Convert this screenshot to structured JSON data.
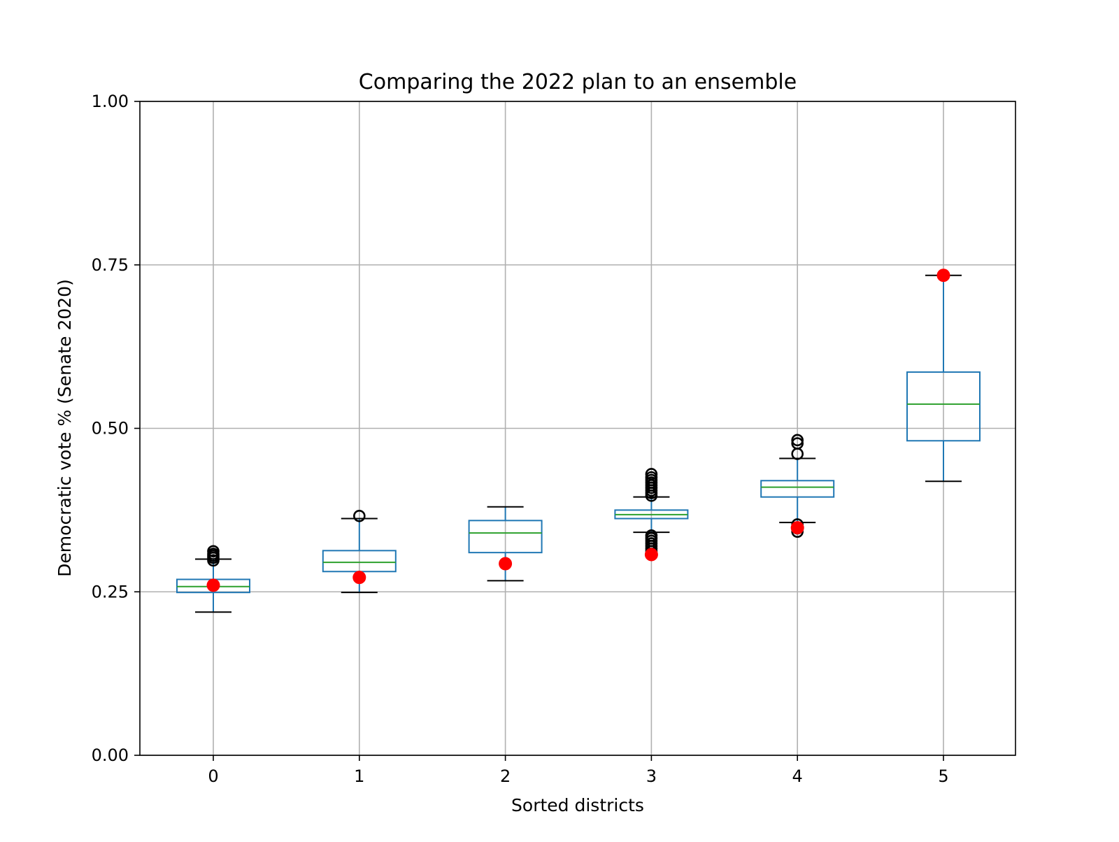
{
  "chart_data": {
    "type": "box",
    "title": "Comparing the 2022 plan to an ensemble",
    "xlabel": "Sorted districts",
    "ylabel": "Democratic vote % (Senate 2020)",
    "ylim": [
      0,
      1
    ],
    "yticks": [
      "0.00",
      "0.25",
      "0.50",
      "0.75",
      "1.00"
    ],
    "categories": [
      "0",
      "1",
      "2",
      "3",
      "4",
      "5"
    ],
    "grid": true,
    "colors": {
      "box": "#1f77b4",
      "median": "#2ca02c",
      "whisker": "#1f77b4",
      "cap": "#000000",
      "outlier": "#000000",
      "plan_marker": "#ff0000",
      "grid": "#b0b0b0"
    },
    "boxes": [
      {
        "category": "0",
        "whisker_low": 0.219,
        "q1": 0.249,
        "median": 0.258,
        "q3": 0.269,
        "whisker_high": 0.3,
        "outliers": [
          0.298,
          0.302,
          0.305,
          0.308,
          0.312
        ]
      },
      {
        "category": "1",
        "whisker_low": 0.249,
        "q1": 0.281,
        "median": 0.295,
        "q3": 0.313,
        "whisker_high": 0.362,
        "outliers": [
          0.366
        ]
      },
      {
        "category": "2",
        "whisker_low": 0.267,
        "q1": 0.31,
        "median": 0.34,
        "q3": 0.359,
        "whisker_high": 0.38,
        "outliers": []
      },
      {
        "category": "3",
        "whisker_low": 0.341,
        "q1": 0.362,
        "median": 0.368,
        "q3": 0.375,
        "whisker_high": 0.395,
        "outliers": [
          0.397,
          0.401,
          0.405,
          0.409,
          0.413,
          0.417,
          0.421,
          0.425,
          0.43,
          0.312,
          0.316,
          0.32,
          0.324,
          0.328,
          0.332,
          0.336
        ]
      },
      {
        "category": "4",
        "whisker_low": 0.356,
        "q1": 0.395,
        "median": 0.41,
        "q3": 0.42,
        "whisker_high": 0.454,
        "outliers": [
          0.461,
          0.477,
          0.482,
          0.342,
          0.347,
          0.353
        ]
      },
      {
        "category": "5",
        "whisker_low": 0.419,
        "q1": 0.481,
        "median": 0.537,
        "q3": 0.586,
        "whisker_high": 0.734,
        "outliers": []
      }
    ],
    "plan_points": [
      0.26,
      0.272,
      0.293,
      0.307,
      0.348,
      0.734
    ]
  }
}
